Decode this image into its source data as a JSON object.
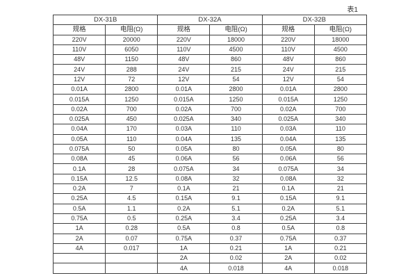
{
  "caption": "表1",
  "table": {
    "groups": [
      {
        "title": "DX-31B",
        "spec_header": "规格",
        "res_header": "电阻(Ω)",
        "rows": [
          [
            "220V",
            "20000"
          ],
          [
            "110V",
            "6050"
          ],
          [
            "48V",
            "1150"
          ],
          [
            "24V",
            "288"
          ],
          [
            "12V",
            "72"
          ],
          [
            "0.01A",
            "2800"
          ],
          [
            "0.015A",
            "1250"
          ],
          [
            "0.02A",
            "700"
          ],
          [
            "0.025A",
            "450"
          ],
          [
            "0.04A",
            "170"
          ],
          [
            "0.05A",
            "110"
          ],
          [
            "0.075A",
            "50"
          ],
          [
            "0.08A",
            "45"
          ],
          [
            "0.1A",
            "28"
          ],
          [
            "0.15A",
            "12.5"
          ],
          [
            "0.2A",
            "7"
          ],
          [
            "0.25A",
            "4.5"
          ],
          [
            "0.5A",
            "1.1"
          ],
          [
            "0.75A",
            "0.5"
          ],
          [
            "1A",
            "0.28"
          ],
          [
            "2A",
            "0.07"
          ],
          [
            "4A",
            "0.017"
          ],
          [
            "",
            ""
          ],
          [
            "",
            ""
          ]
        ]
      },
      {
        "title": "DX-32A",
        "spec_header": "规格",
        "res_header": "电阻(Ω)",
        "rows": [
          [
            "220V",
            "18000"
          ],
          [
            "110V",
            "4500"
          ],
          [
            "48V",
            "860"
          ],
          [
            "24V",
            "215"
          ],
          [
            "12V",
            "54"
          ],
          [
            "0.01A",
            "2800"
          ],
          [
            "0.015A",
            "1250"
          ],
          [
            "0.02A",
            "700"
          ],
          [
            "0.025A",
            "340"
          ],
          [
            "0.03A",
            "110"
          ],
          [
            "0.04A",
            "135"
          ],
          [
            "0.05A",
            "80"
          ],
          [
            "0.06A",
            "56"
          ],
          [
            "0.075A",
            "34"
          ],
          [
            "0.08A",
            "32"
          ],
          [
            "0.1A",
            "21"
          ],
          [
            "0.15A",
            "9.1"
          ],
          [
            "0.2A",
            "5.1"
          ],
          [
            "0.25A",
            "3.4"
          ],
          [
            "0.5A",
            "0.8"
          ],
          [
            "0.75A",
            "0.37"
          ],
          [
            "1A",
            "0.21"
          ],
          [
            "2A",
            "0.02"
          ],
          [
            "4A",
            "0.018"
          ]
        ]
      },
      {
        "title": "DX-32B",
        "spec_header": "规格",
        "res_header": "电阻(Ω)",
        "rows": [
          [
            "220V",
            "18000"
          ],
          [
            "110V",
            "4500"
          ],
          [
            "48V",
            "860"
          ],
          [
            "24V",
            "215"
          ],
          [
            "12V",
            "54"
          ],
          [
            "0.01A",
            "2800"
          ],
          [
            "0.015A",
            "1250"
          ],
          [
            "0.02A",
            "700"
          ],
          [
            "0.025A",
            "340"
          ],
          [
            "0.03A",
            "110"
          ],
          [
            "0.04A",
            "135"
          ],
          [
            "0.05A",
            "80"
          ],
          [
            "0.06A",
            "56"
          ],
          [
            "0.075A",
            "34"
          ],
          [
            "0.08A",
            "32"
          ],
          [
            "0.1A",
            "21"
          ],
          [
            "0.15A",
            "9.1"
          ],
          [
            "0.2A",
            "5.1"
          ],
          [
            "0.25A",
            "3.4"
          ],
          [
            "0.5A",
            "0.8"
          ],
          [
            "0.75A",
            "0.37"
          ],
          [
            "1A",
            "0.21"
          ],
          [
            "2A",
            "0.02"
          ],
          [
            "4A",
            "0.018"
          ]
        ]
      }
    ]
  }
}
